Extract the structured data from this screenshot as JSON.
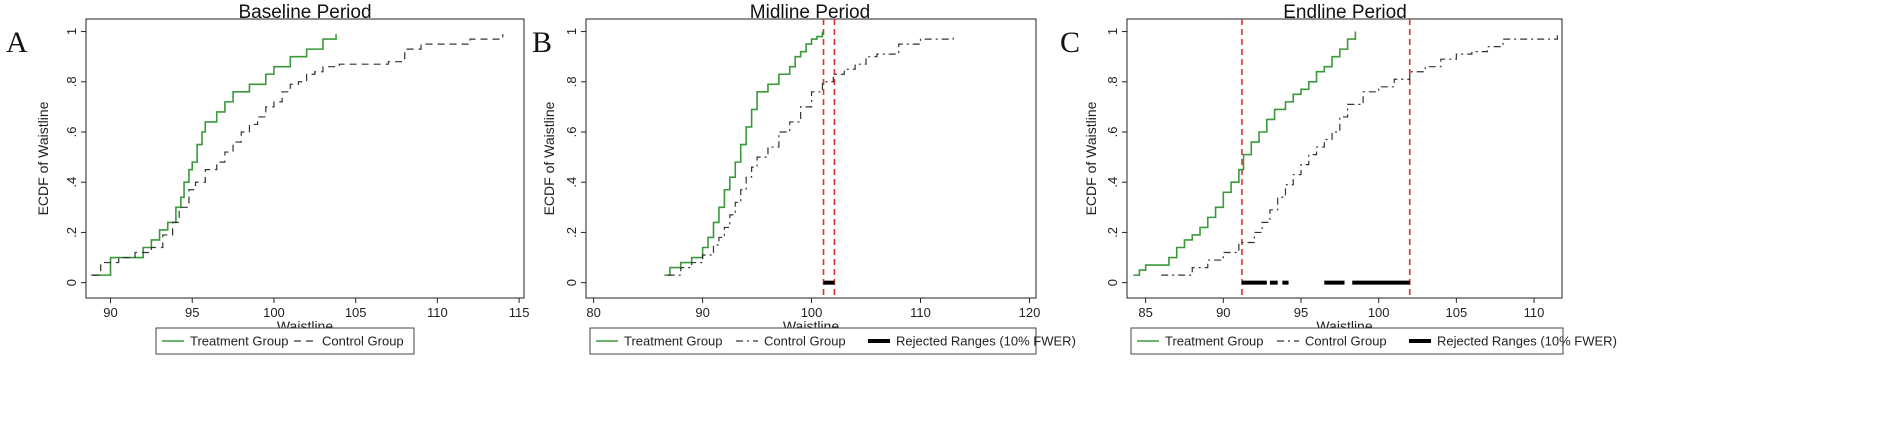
{
  "chart_data": [
    {
      "type": "line",
      "panel_letter": "A",
      "title": "Baseline Period",
      "xlabel": "Waistline",
      "ylabel": "ECDF of Waistline",
      "xlim": [
        88.5,
        115.3
      ],
      "ylim": [
        0,
        1
      ],
      "xticks": [
        90,
        95,
        100,
        105,
        110,
        115
      ],
      "yticks": [
        0,
        0.2,
        0.4,
        0.6,
        0.8,
        1
      ],
      "ytick_labels": [
        "0",
        ".2",
        ".4",
        ".6",
        ".8",
        "1"
      ],
      "colors": {
        "treatment": "#3a9a3a",
        "control": "#333333",
        "rejected": "#000000",
        "bounds": "#e0302a"
      },
      "series": [
        {
          "name": "Treatment Group",
          "style": "solid",
          "x": [
            88.8,
            89.5,
            90.0,
            92.0,
            92.5,
            93.0,
            93.5,
            94.0,
            94.3,
            94.5,
            94.8,
            95.0,
            95.3,
            95.6,
            95.8,
            96.0,
            96.5,
            97.0,
            97.5,
            98.0,
            98.5,
            99.0,
            99.5,
            100.0,
            101.0,
            102.0,
            103.0,
            103.8
          ],
          "y": [
            0.03,
            0.03,
            0.1,
            0.14,
            0.17,
            0.21,
            0.24,
            0.3,
            0.34,
            0.4,
            0.45,
            0.48,
            0.55,
            0.6,
            0.64,
            0.64,
            0.68,
            0.72,
            0.76,
            0.76,
            0.79,
            0.79,
            0.83,
            0.86,
            0.9,
            0.93,
            0.97,
            0.99
          ]
        },
        {
          "name": "Control Group",
          "style": "dashed",
          "x": [
            88.9,
            89.4,
            90.5,
            91.5,
            92.5,
            93.2,
            93.8,
            94.2,
            94.8,
            95.2,
            95.8,
            96.5,
            97.0,
            97.5,
            98.0,
            98.5,
            99.0,
            99.5,
            100.0,
            100.5,
            101.0,
            101.5,
            102.0,
            102.5,
            103.0,
            104.0,
            105.5,
            107.0,
            108.0,
            109.0,
            112.0,
            114.0
          ],
          "y": [
            0.03,
            0.08,
            0.1,
            0.12,
            0.14,
            0.19,
            0.24,
            0.3,
            0.37,
            0.4,
            0.45,
            0.48,
            0.52,
            0.56,
            0.6,
            0.63,
            0.66,
            0.7,
            0.72,
            0.76,
            0.79,
            0.8,
            0.83,
            0.84,
            0.86,
            0.87,
            0.87,
            0.88,
            0.93,
            0.95,
            0.97,
            0.99
          ]
        }
      ],
      "vlines": [],
      "rejected_ranges": [],
      "legend": [
        "Treatment Group",
        "Control Group"
      ]
    },
    {
      "type": "line",
      "panel_letter": "B",
      "title": "Midline Period",
      "xlabel": "Waistline",
      "ylabel": "ECDF of Waistline",
      "xlim": [
        79.3,
        120.6
      ],
      "ylim": [
        0,
        1
      ],
      "xticks": [
        80,
        90,
        100,
        110,
        120
      ],
      "yticks": [
        0,
        0.2,
        0.4,
        0.6,
        0.8,
        1
      ],
      "ytick_labels": [
        "0",
        ".2",
        ".4",
        ".6",
        ".8",
        "1"
      ],
      "colors": {
        "treatment": "#3a9a3a",
        "control": "#333333",
        "rejected": "#000000",
        "bounds": "#e0302a"
      },
      "series": [
        {
          "name": "Treatment Group",
          "style": "solid",
          "x": [
            86.5,
            87.0,
            88.0,
            89.0,
            90.0,
            90.5,
            91.0,
            91.5,
            92.0,
            92.5,
            93.0,
            93.5,
            94.0,
            94.5,
            95.0,
            96.0,
            97.0,
            98.0,
            98.5,
            99.0,
            99.5,
            100.0,
            100.5,
            101.0
          ],
          "y": [
            0.03,
            0.06,
            0.08,
            0.1,
            0.14,
            0.18,
            0.24,
            0.3,
            0.37,
            0.42,
            0.48,
            0.55,
            0.62,
            0.69,
            0.76,
            0.79,
            0.83,
            0.86,
            0.9,
            0.92,
            0.95,
            0.97,
            0.98,
            1.0
          ]
        },
        {
          "name": "Control Group",
          "style": "dashdot",
          "x": [
            86.8,
            88.0,
            89.0,
            90.0,
            91.0,
            91.5,
            92.0,
            92.5,
            93.0,
            93.5,
            94.0,
            94.5,
            95.0,
            96.0,
            97.0,
            98.0,
            99.0,
            100.0,
            101.0,
            102.0,
            103.0,
            104.0,
            105.0,
            106.0,
            108.0,
            110.0,
            113.0
          ],
          "y": [
            0.03,
            0.06,
            0.08,
            0.11,
            0.15,
            0.18,
            0.22,
            0.27,
            0.32,
            0.37,
            0.42,
            0.46,
            0.5,
            0.54,
            0.6,
            0.64,
            0.7,
            0.76,
            0.8,
            0.83,
            0.85,
            0.87,
            0.9,
            0.91,
            0.95,
            0.97,
            0.99
          ]
        }
      ],
      "vlines": [
        101.1,
        102.1
      ],
      "rejected_ranges": [
        [
          101.1,
          102.1
        ]
      ],
      "legend": [
        "Treatment Group",
        "Control Group",
        "Rejected Ranges (10% FWER)"
      ]
    },
    {
      "type": "line",
      "panel_letter": "C",
      "title": "Endline Period",
      "xlabel": "Waistline",
      "ylabel": "ECDF of Waistline",
      "xlim": [
        83.8,
        111.8
      ],
      "ylim": [
        0,
        1
      ],
      "xticks": [
        85,
        90,
        95,
        100,
        105,
        110
      ],
      "yticks": [
        0,
        0.2,
        0.4,
        0.6,
        0.8,
        1
      ],
      "ytick_labels": [
        "0",
        ".2",
        ".4",
        ".6",
        ".8",
        "1"
      ],
      "colors": {
        "treatment": "#3a9a3a",
        "control": "#333333",
        "rejected": "#000000",
        "bounds": "#e0302a"
      },
      "series": [
        {
          "name": "Treatment Group",
          "style": "solid",
          "x": [
            84.2,
            84.6,
            85.0,
            86.5,
            87.0,
            87.5,
            88.0,
            88.5,
            89.0,
            89.5,
            90.0,
            90.5,
            91.0,
            91.3,
            91.8,
            92.3,
            92.8,
            93.3,
            94.0,
            94.5,
            95.0,
            95.5,
            96.0,
            96.5,
            97.0,
            97.5,
            98.0,
            98.5
          ],
          "y": [
            0.03,
            0.05,
            0.07,
            0.1,
            0.14,
            0.17,
            0.19,
            0.22,
            0.26,
            0.3,
            0.36,
            0.4,
            0.45,
            0.51,
            0.56,
            0.6,
            0.65,
            0.69,
            0.72,
            0.75,
            0.77,
            0.8,
            0.84,
            0.86,
            0.9,
            0.93,
            0.97,
            1.0
          ]
        },
        {
          "name": "Control Group",
          "style": "dashdot",
          "x": [
            86.0,
            88.0,
            89.0,
            90.0,
            91.0,
            92.0,
            92.5,
            93.0,
            93.5,
            94.0,
            94.5,
            95.0,
            95.5,
            96.0,
            96.5,
            97.0,
            97.5,
            98.0,
            99.0,
            100.0,
            101.0,
            102.0,
            103.0,
            104.0,
            105.0,
            106.0,
            107.0,
            108.0,
            110.0,
            111.5
          ],
          "y": [
            0.03,
            0.06,
            0.09,
            0.12,
            0.16,
            0.2,
            0.24,
            0.29,
            0.34,
            0.39,
            0.43,
            0.47,
            0.51,
            0.54,
            0.57,
            0.6,
            0.66,
            0.71,
            0.76,
            0.78,
            0.81,
            0.84,
            0.86,
            0.89,
            0.91,
            0.92,
            0.94,
            0.97,
            0.97,
            0.99
          ]
        }
      ],
      "vlines": [
        91.2,
        102.0
      ],
      "rejected_ranges": [
        [
          91.2,
          92.8
        ],
        [
          93.0,
          93.5
        ],
        [
          93.8,
          94.2
        ],
        [
          96.5,
          97.8
        ],
        [
          98.3,
          102.0
        ]
      ],
      "legend": [
        "Treatment Group",
        "Control Group",
        "Rejected Ranges (10% FWER)"
      ]
    }
  ]
}
